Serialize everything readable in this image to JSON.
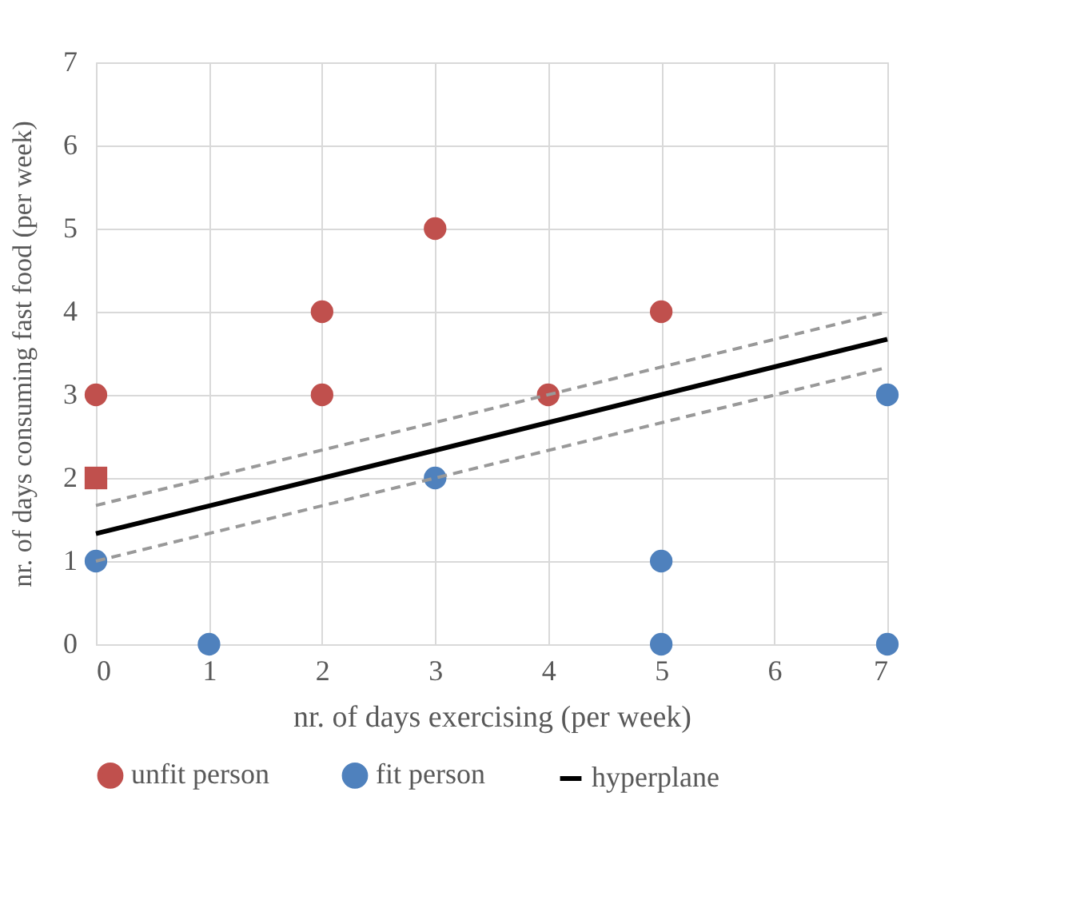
{
  "chart_data": {
    "type": "scatter",
    "xlabel": "nr. of days exercising (per week)",
    "ylabel": "nr. of days consuming fast food (per week)",
    "xlim": [
      0,
      7
    ],
    "ylim": [
      0,
      7
    ],
    "xticks": [
      0,
      1,
      2,
      3,
      4,
      5,
      6,
      7
    ],
    "yticks": [
      0,
      1,
      2,
      3,
      4,
      5,
      6,
      7
    ],
    "grid": true,
    "legend": "bottom",
    "marker": "circle",
    "series": [
      {
        "name": "unfit person",
        "color": "#c0504d",
        "x": [
          0,
          2,
          2,
          3,
          4,
          5
        ],
        "values": [
          3,
          4,
          3,
          5,
          3,
          4
        ]
      },
      {
        "color": "#c0504d",
        "marker": "square",
        "x": [
          0
        ],
        "values": [
          2
        ]
      },
      {
        "name": "fit person",
        "color": "#4f81bd",
        "x": [
          0,
          1,
          3,
          5,
          5,
          7,
          7
        ],
        "values": [
          1,
          0,
          2,
          1,
          0,
          3,
          0
        ]
      },
      {
        "name": "hyperplane",
        "type": "line",
        "color": "#000000",
        "line_style": "solid",
        "marker": "none",
        "x": [
          0,
          7
        ],
        "values": [
          1.33,
          3.67
        ]
      },
      {
        "type": "line",
        "color": "#999999",
        "line_style": "dashed",
        "marker": "none",
        "x": [
          0,
          7
        ],
        "values": [
          1.67,
          4
        ]
      },
      {
        "type": "line",
        "color": "#999999",
        "line_style": "dashed",
        "marker": "none",
        "x": [
          0,
          7
        ],
        "values": [
          1,
          3.33
        ]
      }
    ]
  }
}
